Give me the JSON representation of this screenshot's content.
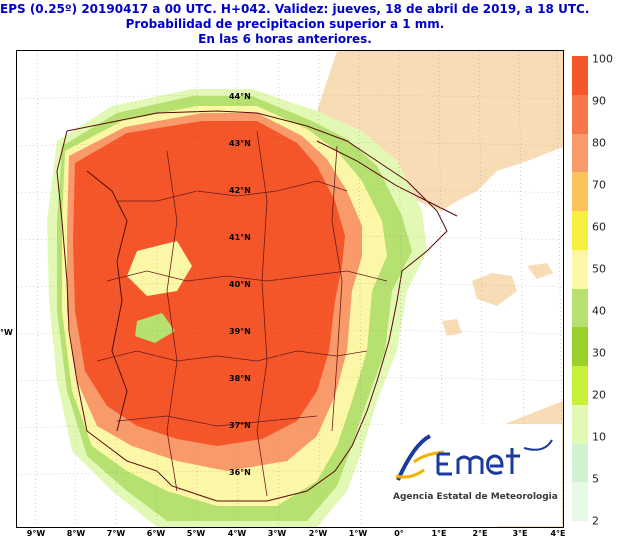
{
  "title": {
    "line1": "EPS (0.25º) 20190417 a 00 UTC.  H+042. Validez: jueves, 18 de abril de 2019,  a  18 UTC.",
    "line2": "Probabilidad de precipitacion superior a 1 mm.",
    "line3": "En las 6 horas anteriores."
  },
  "map": {
    "lat_labels": [
      "44°N",
      "43°N",
      "42°N",
      "41°N",
      "40°N",
      "39°N",
      "38°N",
      "37°N",
      "36°N"
    ],
    "lon_labels": [
      "9°W",
      "8°W",
      "7°W",
      "6°W",
      "5°W",
      "4°W",
      "3°W",
      "2°W",
      "1°W",
      "0°",
      "1°E",
      "2°E",
      "3°E",
      "4°E"
    ],
    "left_partial_label": "°W"
  },
  "legend": {
    "labels": [
      "100",
      "90",
      "80",
      "70",
      "60",
      "50",
      "40",
      "30",
      "20",
      "10",
      "5",
      "2"
    ],
    "colors": [
      "#f4562a",
      "#f67848",
      "#f99a6a",
      "#fbc45a",
      "#f8f040",
      "#fcf7a6",
      "#b6e070",
      "#9bd02c",
      "#c8ef3a",
      "#e2f9b6",
      "#cff3d0",
      "#e6fae6"
    ]
  },
  "logo": {
    "brand": "AEmet",
    "text": "Agencia Estatal de Meteorologia",
    "colors": {
      "blue": "#1a3a9e",
      "yellow": "#f2b200"
    }
  },
  "colors": {
    "title": "#0000cc",
    "land_outside": "#f8dcb6",
    "sea": "#ffffff"
  }
}
